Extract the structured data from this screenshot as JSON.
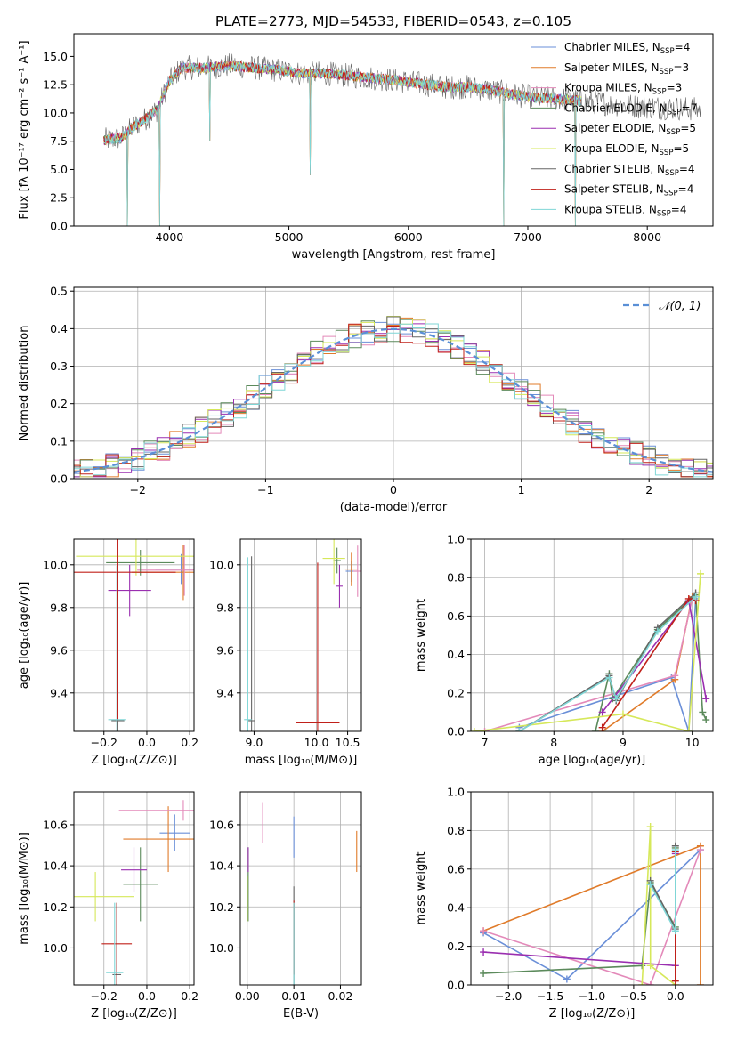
{
  "figure": {
    "title": "PLATE=2773, MJD=54533, FIBERID=0543, z=0.105"
  },
  "models": [
    {
      "name": "Chabrier MILES, N",
      "nssp": "=4",
      "color": "#6a8fd8"
    },
    {
      "name": "Salpeter MILES, N",
      "nssp": "=3",
      "color": "#e07b2a"
    },
    {
      "name": "Kroupa MILES, N",
      "nssp": "=3",
      "color": "#e389b9"
    },
    {
      "name": "Chabrier ELODIE, N",
      "nssp": "=7",
      "color": "#5b8a5b"
    },
    {
      "name": "Salpeter ELODIE, N",
      "nssp": "=5",
      "color": "#9a2fb0"
    },
    {
      "name": "Kroupa ELODIE, N",
      "nssp": "=5",
      "color": "#d6e85a"
    },
    {
      "name": "Chabrier STELIB, N",
      "nssp": "=4",
      "color": "#666666"
    },
    {
      "name": "Salpeter STELIB, N",
      "nssp": "=4",
      "color": "#c0201a"
    },
    {
      "name": "Kroupa STELIB, N",
      "nssp": "=4",
      "color": "#7fd6d6"
    }
  ],
  "chart_data": [
    {
      "id": "spectrum",
      "type": "line",
      "title": "PLATE=2773, MJD=54533, FIBERID=0543, z=0.105",
      "xlabel": "wavelength [Angstrom, rest frame]",
      "ylabel": "Flux [fλ 10⁻¹⁷ erg cm⁻² s⁻¹ A⁻¹]",
      "xlim": [
        3200,
        8550
      ],
      "ylim": [
        0,
        17
      ],
      "xticks": [
        4000,
        5000,
        6000,
        7000,
        8000
      ],
      "yticks": [
        0.0,
        2.5,
        5.0,
        7.5,
        10.0,
        12.5,
        15.0
      ],
      "grid": false,
      "legend": "top-right",
      "continuum": [
        [
          3450,
          7.6
        ],
        [
          3600,
          7.8
        ],
        [
          3700,
          8.8
        ],
        [
          3800,
          9.5
        ],
        [
          3900,
          10.3
        ],
        [
          3950,
          11.6
        ],
        [
          4000,
          12.8
        ],
        [
          4100,
          14.0
        ],
        [
          4300,
          14.0
        ],
        [
          4500,
          14.2
        ],
        [
          4700,
          14.0
        ],
        [
          4900,
          13.8
        ],
        [
          5100,
          13.5
        ],
        [
          5300,
          13.5
        ],
        [
          5500,
          13.3
        ],
        [
          5700,
          13.1
        ],
        [
          5900,
          12.9
        ],
        [
          6100,
          12.6
        ],
        [
          6300,
          12.3
        ],
        [
          6500,
          12.3
        ],
        [
          6700,
          12.0
        ],
        [
          6900,
          11.6
        ],
        [
          7100,
          11.3
        ],
        [
          7300,
          11.2
        ],
        [
          7500,
          11.0
        ],
        [
          7700,
          10.8
        ],
        [
          7900,
          10.6
        ],
        [
          8100,
          10.5
        ],
        [
          8300,
          10.4
        ],
        [
          8450,
          10.3
        ]
      ],
      "absorption_lines": [
        [
          3650,
          0.0
        ],
        [
          3920,
          0.0
        ],
        [
          4340,
          7.5
        ],
        [
          5180,
          4.5
        ],
        [
          6800,
          0.0
        ],
        [
          7400,
          0.0
        ]
      ]
    },
    {
      "id": "residuals",
      "type": "line",
      "xlabel": "(data-model)/error",
      "ylabel": "Normed distribution",
      "xlim": [
        -2.5,
        2.5
      ],
      "ylim": [
        0,
        0.51
      ],
      "xticks": [
        -2,
        -1,
        0,
        1,
        2
      ],
      "yticks": [
        0.0,
        0.1,
        0.2,
        0.3,
        0.4,
        0.5
      ],
      "grid": true,
      "legend": "top-right",
      "reference_label": "𝒩(0, 1)",
      "bin_width": 0.1
    },
    {
      "id": "age-vs-Z",
      "type": "scatter",
      "xlabel": "Z [log₁₀(Z/Z⊙)]",
      "ylabel": "age  [log₁₀(age/yr)]",
      "xlim": [
        -0.34,
        0.22
      ],
      "ylim": [
        9.22,
        10.12
      ],
      "xticks": [
        -0.2,
        0.0,
        0.2
      ],
      "xticklabels": [
        "−0.2",
        "0.0",
        "0.2"
      ],
      "yticks": [
        9.4,
        9.6,
        9.8,
        10.0
      ],
      "grid": true,
      "points": [
        {
          "model": 0,
          "x": 0.16,
          "xerr": 0.12,
          "y": 9.98,
          "yerr": 0.07
        },
        {
          "model": 1,
          "x": 0.17,
          "xerr": 0.24,
          "y": 9.965,
          "yerr": 0.13
        },
        {
          "model": 2,
          "x": 0.175,
          "xerr": 0.22,
          "y": 9.975,
          "yerr": 0.12
        },
        {
          "model": 3,
          "x": -0.03,
          "xerr": 0.16,
          "y": 10.01,
          "yerr": 0.06
        },
        {
          "model": 4,
          "x": -0.08,
          "xerr": 0.1,
          "y": 9.88,
          "yerr": 0.12
        },
        {
          "model": 5,
          "x": -0.05,
          "xerr": 0.28,
          "y": 10.04,
          "yerr": 0.09
        },
        {
          "model": 6,
          "x": -0.135,
          "xerr": 0.03,
          "y": 9.27,
          "yerr": 0.73
        },
        {
          "model": 7,
          "x": -0.135,
          "xerr": 0.27,
          "y": 9.965,
          "yerr": 0.69
        },
        {
          "model": 8,
          "x": -0.14,
          "xerr": 0.04,
          "y": 9.275,
          "yerr": 0.72
        }
      ]
    },
    {
      "id": "age-vs-mass",
      "type": "scatter",
      "xlabel": "mass [log₁₀(M/M⊙)]",
      "xlim": [
        8.78,
        10.72
      ],
      "ylim": [
        9.22,
        10.12
      ],
      "xticks": [
        9.0,
        10.0,
        10.5
      ],
      "xticklabels": [
        "9.0",
        "10.0",
        "10.5"
      ],
      "yticks": [
        9.4,
        9.6,
        9.8,
        10.0
      ],
      "grid": true,
      "points": [
        {
          "model": 0,
          "x": 10.56,
          "xerr": 0.09,
          "y": 9.97,
          "yerr": 0.05
        },
        {
          "model": 1,
          "x": 10.56,
          "xerr": 0.1,
          "y": 9.98,
          "yerr": 0.08
        },
        {
          "model": 2,
          "x": 10.66,
          "xerr": 0.07,
          "y": 9.97,
          "yerr": 0.12
        },
        {
          "model": 3,
          "x": 10.33,
          "xerr": 0.06,
          "y": 10.02,
          "yerr": 0.06
        },
        {
          "model": 4,
          "x": 10.37,
          "xerr": 0.05,
          "y": 9.9,
          "yerr": 0.1
        },
        {
          "model": 5,
          "x": 10.28,
          "xerr": 0.18,
          "y": 10.03,
          "yerr": 0.12
        },
        {
          "model": 6,
          "x": 8.96,
          "xerr": 0.05,
          "y": 9.27,
          "yerr": 0.77
        },
        {
          "model": 7,
          "x": 10.02,
          "xerr": 0.35,
          "y": 9.26,
          "yerr": 0.75
        },
        {
          "model": 8,
          "x": 8.9,
          "xerr": 0.06,
          "y": 9.275,
          "yerr": 0.76
        }
      ]
    },
    {
      "id": "weight-vs-age",
      "type": "line",
      "xlabel": "age  [log₁₀(age/yr)]",
      "ylabel": "mass weight",
      "xlim": [
        6.8,
        10.3
      ],
      "ylim": [
        0,
        1.0
      ],
      "xticks": [
        7,
        8,
        9,
        10
      ],
      "yticks": [
        0.0,
        0.2,
        0.4,
        0.6,
        0.8,
        1.0
      ],
      "grid": true,
      "series": [
        {
          "model": 0,
          "x": [
            7.5,
            9.7,
            9.95,
            10.05
          ],
          "y": [
            0.02,
            0.28,
            0.0,
            0.69
          ]
        },
        {
          "model": 1,
          "x": [
            8.7,
            9.75,
            10.0
          ],
          "y": [
            0.0,
            0.27,
            0.7
          ]
        },
        {
          "model": 2,
          "x": [
            7.0,
            9.75,
            10.0
          ],
          "y": [
            0.0,
            0.29,
            0.69
          ]
        },
        {
          "model": 3,
          "x": [
            8.6,
            8.8,
            8.85,
            9.5,
            10.05,
            10.15,
            10.2
          ],
          "y": [
            0.0,
            0.3,
            0.17,
            0.53,
            0.71,
            0.1,
            0.06
          ]
        },
        {
          "model": 4,
          "x": [
            8.7,
            9.95,
            10.2
          ],
          "y": [
            0.1,
            0.68,
            0.17
          ]
        },
        {
          "model": 5,
          "x": [
            6.85,
            9.0,
            9.95,
            10.12
          ],
          "y": [
            0.0,
            0.09,
            0.0,
            0.82
          ]
        },
        {
          "model": 6,
          "x": [
            7.5,
            8.8,
            8.9,
            9.5,
            10.05
          ],
          "y": [
            0.0,
            0.29,
            0.16,
            0.54,
            0.72
          ]
        },
        {
          "model": 7,
          "x": [
            8.7,
            9.95,
            10.05
          ],
          "y": [
            0.02,
            0.69,
            0.68
          ]
        },
        {
          "model": 8,
          "x": [
            7.5,
            8.8,
            8.9,
            9.5,
            10.05
          ],
          "y": [
            0.0,
            0.28,
            0.17,
            0.52,
            0.7
          ]
        }
      ]
    },
    {
      "id": "mass-vs-Z",
      "type": "scatter",
      "xlabel": "Z [log₁₀(Z/Z⊙)]",
      "ylabel": "mass [log₁₀(M/M⊙)]",
      "xlim": [
        -0.34,
        0.22
      ],
      "ylim": [
        9.82,
        10.76
      ],
      "xticks": [
        -0.2,
        0.0,
        0.2
      ],
      "xticklabels": [
        "−0.2",
        "0.0",
        "0.2"
      ],
      "yticks": [
        10.0,
        10.2,
        10.4,
        10.6
      ],
      "grid": true,
      "points": [
        {
          "model": 0,
          "x": 0.13,
          "xerr": 0.07,
          "y": 10.56,
          "yerr": 0.09
        },
        {
          "model": 1,
          "x": 0.1,
          "xerr": 0.21,
          "y": 10.53,
          "yerr": 0.16
        },
        {
          "model": 2,
          "x": 0.17,
          "xerr": 0.3,
          "y": 10.67,
          "yerr": 0.05
        },
        {
          "model": 3,
          "x": -0.03,
          "xerr": 0.08,
          "y": 10.31,
          "yerr": 0.18
        },
        {
          "model": 4,
          "x": -0.06,
          "xerr": 0.06,
          "y": 10.38,
          "yerr": 0.11
        },
        {
          "model": 5,
          "x": -0.24,
          "xerr": 0.18,
          "y": 10.25,
          "yerr": 0.12
        },
        {
          "model": 6,
          "x": -0.14,
          "xerr": 0.02,
          "y": 9.87,
          "yerr": 0.35
        },
        {
          "model": 7,
          "x": -0.14,
          "xerr": 0.07,
          "y": 10.02,
          "yerr": 0.2
        },
        {
          "model": 8,
          "x": -0.15,
          "xerr": 0.04,
          "y": 9.88,
          "yerr": 0.34
        }
      ]
    },
    {
      "id": "mass-vs-ebv",
      "type": "scatter",
      "xlabel": "E(B-V)",
      "xlim": [
        -0.0015,
        0.0245
      ],
      "ylim": [
        9.82,
        10.76
      ],
      "xticks": [
        0.0,
        0.01,
        0.02
      ],
      "xticklabels": [
        "0.00",
        "0.01",
        "0.02"
      ],
      "yticks": [
        10.0,
        10.2,
        10.4,
        10.6
      ],
      "grid": true,
      "points": [
        {
          "model": 0,
          "x": 0.01,
          "y": 10.54,
          "yerr": 0.1
        },
        {
          "model": 1,
          "x": 0.0235,
          "y": 10.47,
          "yerr": 0.1
        },
        {
          "model": 2,
          "x": 0.0033,
          "y": 10.61,
          "yerr": 0.1
        },
        {
          "model": 3,
          "x": 0.0002,
          "y": 10.31,
          "yerr": 0.18
        },
        {
          "model": 4,
          "x": 0.0002,
          "y": 10.43,
          "yerr": 0.06
        },
        {
          "model": 5,
          "x": 0.0,
          "y": 10.24,
          "yerr": 0.11
        },
        {
          "model": 6,
          "x": 0.01,
          "y": 9.92,
          "yerr": 0.38
        },
        {
          "model": 7,
          "x": 0.01,
          "y": 10.05,
          "yerr": 0.18
        },
        {
          "model": 8,
          "x": 0.01,
          "y": 9.9,
          "yerr": 0.32
        }
      ]
    },
    {
      "id": "weight-vs-Z",
      "type": "line",
      "xlabel": "Z [log₁₀(Z/Z⊙)]",
      "ylabel": "mass weight",
      "xlim": [
        -2.45,
        0.45
      ],
      "ylim": [
        0,
        1.0
      ],
      "xticks": [
        -2.0,
        -1.5,
        -1.0,
        -0.5,
        0.0
      ],
      "xticklabels": [
        "−2.0",
        "−1.5",
        "−1.0",
        "−0.5",
        "0.0"
      ],
      "yticks": [
        0.0,
        0.2,
        0.4,
        0.6,
        0.8,
        1.0
      ],
      "grid": true,
      "series": [
        {
          "model": 0,
          "x": [
            -2.3,
            -1.3,
            0.3
          ],
          "y": [
            0.27,
            0.03,
            0.7
          ]
        },
        {
          "model": 1,
          "x": [
            -2.3,
            0.3,
            0.3
          ],
          "y": [
            0.28,
            0.72,
            0.0
          ]
        },
        {
          "model": 2,
          "x": [
            -2.3,
            -0.3,
            0.3
          ],
          "y": [
            0.28,
            0.0,
            0.7
          ]
        },
        {
          "model": 3,
          "x": [
            -2.3,
            -0.4,
            -0.3,
            0.0,
            0.0
          ],
          "y": [
            0.06,
            0.1,
            0.53,
            0.3,
            0.71
          ]
        },
        {
          "model": 4,
          "x": [
            -2.3,
            0.0,
            0.0
          ],
          "y": [
            0.17,
            0.1,
            0.68
          ]
        },
        {
          "model": 5,
          "x": [
            -0.4,
            -0.3,
            -0.3,
            0.0
          ],
          "y": [
            0.0,
            0.82,
            0.1,
            0.0
          ]
        },
        {
          "model": 6,
          "x": [
            -0.3,
            0.0,
            0.0
          ],
          "y": [
            0.54,
            0.29,
            0.72
          ]
        },
        {
          "model": 7,
          "x": [
            0.0,
            0.0
          ],
          "y": [
            0.02,
            0.69
          ]
        },
        {
          "model": 8,
          "x": [
            -0.3,
            0.0,
            0.0
          ],
          "y": [
            0.52,
            0.28,
            0.7
          ]
        }
      ]
    }
  ]
}
